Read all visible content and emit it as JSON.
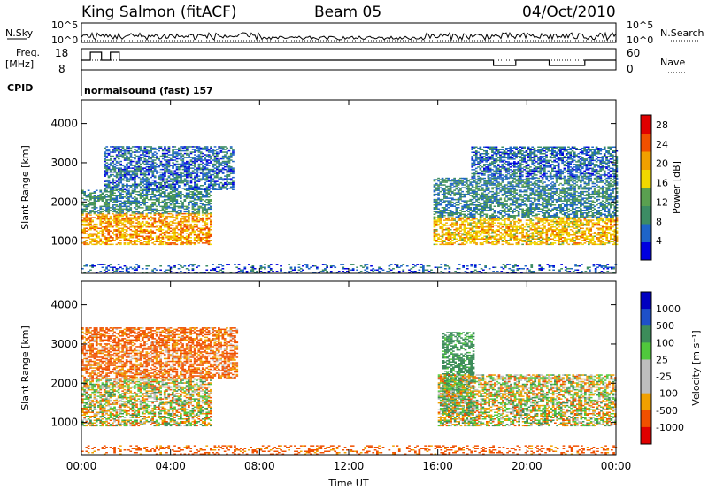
{
  "header": {
    "station": "King Salmon (fitACF)",
    "beam": "Beam 05",
    "date": "04/Oct/2010"
  },
  "strip": {
    "nsky_label": "N.Sky",
    "nsearch_label": "N.Search",
    "freq_label": "Freq.",
    "freq_unit": "[MHz]",
    "nave_label": "Nave",
    "cpid_label": "CPID",
    "cpid_value": "normalsound (fast) 157",
    "nsky_ticks": [
      "10^5",
      "10^0"
    ],
    "nsearch_ticks": [
      "10^5",
      "10^0"
    ],
    "freq_ticks": [
      "18",
      "8"
    ],
    "nave_ticks": [
      "60",
      "0"
    ]
  },
  "colors": {
    "power_scale": [
      "#0000e0",
      "#1e64c8",
      "#3c8c64",
      "#5aa050",
      "#f0d800",
      "#f0a000",
      "#f05000",
      "#e00000"
    ],
    "velocity_scale": [
      "#e00000",
      "#f05000",
      "#f0a000",
      "#bebebe",
      "#bebebe",
      "#50c83c",
      "#3c8c5a",
      "#1e50c8",
      "#0000c0"
    ],
    "ground_scatter": "#bebebe"
  },
  "chart_data": [
    {
      "type": "heatmap",
      "panel": "power",
      "xlabel": "Time UT",
      "ylabel": "Slant Range [km]",
      "x_ticks": [
        "00:00",
        "04:00",
        "08:00",
        "12:00",
        "16:00",
        "20:00",
        "00:00"
      ],
      "xlim": [
        0,
        24
      ],
      "y_ticks": [
        1000,
        2000,
        3000,
        4000
      ],
      "ylim": [
        180,
        4600
      ],
      "colorbar_label": "Power [dB]",
      "colorbar_ticks": [
        4,
        8,
        12,
        16,
        20,
        24,
        28
      ],
      "colorbar_range": [
        0,
        30
      ],
      "regions": [
        {
          "t0": 0.0,
          "t1": 5.8,
          "r0": 900,
          "r1": 1700,
          "value": 22
        },
        {
          "t0": 0.0,
          "t1": 5.8,
          "r0": 1700,
          "r1": 2300,
          "value": 10
        },
        {
          "t0": 1.0,
          "t1": 6.8,
          "r0": 2300,
          "r1": 3400,
          "value": 7
        },
        {
          "t0": 15.8,
          "t1": 24.0,
          "r0": 900,
          "r1": 1600,
          "value": 20
        },
        {
          "t0": 15.8,
          "t1": 24.0,
          "r0": 1600,
          "r1": 2600,
          "value": 9
        },
        {
          "t0": 17.5,
          "t1": 24.0,
          "r0": 2600,
          "r1": 3400,
          "value": 7
        },
        {
          "t0": 0.0,
          "t1": 24.0,
          "r0": 180,
          "r1": 400,
          "value": 6
        }
      ]
    },
    {
      "type": "heatmap",
      "panel": "velocity",
      "xlabel": "Time UT",
      "ylabel": "Slant Range [km]",
      "x_ticks": [
        "00:00",
        "04:00",
        "08:00",
        "12:00",
        "16:00",
        "20:00",
        "00:00"
      ],
      "xlim": [
        0,
        24
      ],
      "y_ticks": [
        1000,
        2000,
        3000,
        4000
      ],
      "ylim": [
        180,
        4600
      ],
      "colorbar_label": "Velocity [m s⁻¹]",
      "colorbar_ticks": [
        1000,
        500,
        100,
        25,
        -25,
        -100,
        -500,
        -1000
      ],
      "regions": [
        {
          "t0": 0.0,
          "t1": 5.8,
          "r0": 900,
          "r1": 2100,
          "value": 0
        },
        {
          "t0": 0.0,
          "t1": 7.0,
          "r0": 2100,
          "r1": 3400,
          "value": -150
        },
        {
          "t0": 16.2,
          "t1": 17.6,
          "r0": 1200,
          "r1": 3300,
          "value": 200
        },
        {
          "t0": 16.0,
          "t1": 24.0,
          "r0": 900,
          "r1": 2200,
          "value": 0
        },
        {
          "t0": 0.0,
          "t1": 24.0,
          "r0": 180,
          "r1": 400,
          "value": -200
        }
      ]
    }
  ]
}
